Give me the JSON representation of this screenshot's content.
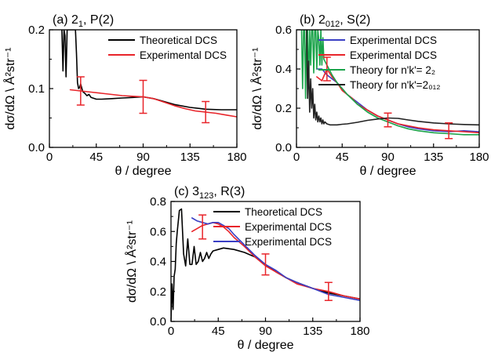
{
  "chart_data": [
    {
      "id": "a",
      "type": "line",
      "title": {
        "base": "(a) 2",
        "sub": "1",
        "rest": ", P(2)"
      },
      "xlabel": "θ / degree",
      "ylabel": "dσ/dΩ \\ Å²str⁻¹",
      "xlim": [
        0,
        180
      ],
      "ylim": [
        0,
        0.2
      ],
      "xticks": [
        0,
        45,
        90,
        135,
        180
      ],
      "xtick_labels": [
        "0",
        "45",
        "90",
        "135",
        "180"
      ],
      "yticks": [
        0,
        0.1,
        0.2
      ],
      "ytick_labels": [
        "0.0",
        "0.1",
        "0.2"
      ],
      "legend_position": "top-right",
      "series": [
        {
          "name": "Theoretical DCS",
          "color": "#000000",
          "x": [
            12,
            13,
            14,
            15,
            16,
            17,
            18,
            19,
            20,
            21,
            22,
            23,
            24,
            25,
            26,
            27,
            28,
            29,
            30,
            32,
            34,
            36,
            38,
            40,
            45,
            50,
            60,
            70,
            80,
            90,
            100,
            110,
            120,
            135,
            150,
            165,
            180
          ],
          "y": [
            0.2,
            0.13,
            0.2,
            0.19,
            0.12,
            0.2,
            0.2,
            0.2,
            0.2,
            0.2,
            0.2,
            0.2,
            0.2,
            0.2,
            0.16,
            0.11,
            0.1,
            0.102,
            0.108,
            0.095,
            0.092,
            0.088,
            0.09,
            0.085,
            0.082,
            0.082,
            0.083,
            0.084,
            0.085,
            0.086,
            0.083,
            0.078,
            0.073,
            0.068,
            0.065,
            0.064,
            0.064
          ]
        },
        {
          "name": "Experimental DCS",
          "color": "#e8242a",
          "x": [
            20,
            30,
            40,
            50,
            60,
            70,
            80,
            90,
            100,
            110,
            120,
            130,
            140,
            150,
            160,
            170,
            180
          ],
          "y": [
            0.098,
            0.096,
            0.094,
            0.092,
            0.09,
            0.088,
            0.087,
            0.086,
            0.083,
            0.077,
            0.071,
            0.066,
            0.062,
            0.06,
            0.058,
            0.055,
            0.052
          ]
        }
      ],
      "error_bars": [
        {
          "x": 30,
          "y": 0.096,
          "err": 0.024
        },
        {
          "x": 90,
          "y": 0.086,
          "err": 0.028
        },
        {
          "x": 150,
          "y": 0.06,
          "err": 0.018
        }
      ]
    },
    {
      "id": "b",
      "type": "line",
      "title": {
        "base": "(b) 2",
        "sub": "012",
        "rest": ", S(2)"
      },
      "xlabel": "θ / degree",
      "ylabel": "dσ/dΩ \\ Å²str⁻¹",
      "xlim": [
        0,
        180
      ],
      "ylim": [
        0,
        0.6
      ],
      "xticks": [
        0,
        45,
        90,
        135,
        180
      ],
      "xtick_labels": [
        "0",
        "45",
        "90",
        "135",
        "180"
      ],
      "yticks": [
        0,
        0.2,
        0.4,
        0.6
      ],
      "ytick_labels": [
        "0.0",
        "0.2",
        "0.4",
        "0.6"
      ],
      "legend_position": "top-right",
      "series": [
        {
          "name": "Experimental DCS",
          "color": "#3a3fc4",
          "x": [
            20,
            25,
            30,
            35,
            40,
            45,
            50,
            55,
            60,
            70,
            80,
            90,
            100,
            110,
            120,
            135,
            150,
            165,
            180
          ],
          "y": [
            0.4,
            0.4,
            0.37,
            0.35,
            0.33,
            0.3,
            0.27,
            0.25,
            0.23,
            0.19,
            0.16,
            0.14,
            0.12,
            0.105,
            0.095,
            0.085,
            0.08,
            0.085,
            0.08
          ]
        },
        {
          "name": "Experimental DCS",
          "color": "#e8242a",
          "x": [
            20,
            25,
            30,
            35,
            40,
            45,
            50,
            55,
            60,
            70,
            80,
            90,
            100,
            110,
            120,
            135,
            150,
            165,
            180
          ],
          "y": [
            0.36,
            0.34,
            0.4,
            0.36,
            0.33,
            0.29,
            0.27,
            0.25,
            0.22,
            0.19,
            0.16,
            0.14,
            0.12,
            0.11,
            0.1,
            0.09,
            0.085,
            0.08,
            0.075
          ]
        },
        {
          "name": "Theory for n'k'= 2₂",
          "color": "#1aa34a",
          "x": [
            5,
            6,
            7,
            8,
            9,
            10,
            11,
            12,
            13,
            14,
            15,
            16,
            17,
            18,
            19,
            20,
            21,
            22,
            23,
            24,
            25,
            26,
            27,
            28,
            30,
            35,
            40,
            45,
            50,
            60,
            70,
            80,
            90,
            100,
            110,
            120,
            135,
            150,
            165,
            180
          ],
          "y": [
            0.6,
            0.3,
            0.6,
            0.6,
            0.25,
            0.6,
            0.6,
            0.3,
            0.6,
            0.42,
            0.6,
            0.6,
            0.38,
            0.6,
            0.6,
            0.4,
            0.6,
            0.55,
            0.42,
            0.6,
            0.42,
            0.56,
            0.45,
            0.44,
            0.42,
            0.37,
            0.33,
            0.3,
            0.27,
            0.22,
            0.18,
            0.15,
            0.13,
            0.11,
            0.095,
            0.085,
            0.075,
            0.07,
            0.065,
            0.065
          ]
        },
        {
          "name": "Theory for n'k'=2₀₁₂",
          "color": "#222222",
          "x": [
            10,
            11,
            12,
            13,
            14,
            15,
            16,
            17,
            18,
            19,
            20,
            21,
            22,
            23,
            24,
            25,
            26,
            27,
            28,
            30,
            33,
            36,
            40,
            45,
            50,
            60,
            70,
            80,
            90,
            100,
            110,
            120,
            135,
            150,
            165,
            180
          ],
          "y": [
            0.6,
            0.25,
            0.44,
            0.18,
            0.35,
            0.2,
            0.3,
            0.15,
            0.22,
            0.14,
            0.18,
            0.13,
            0.16,
            0.13,
            0.15,
            0.12,
            0.14,
            0.12,
            0.13,
            0.12,
            0.115,
            0.115,
            0.115,
            0.118,
            0.12,
            0.128,
            0.138,
            0.145,
            0.15,
            0.148,
            0.14,
            0.133,
            0.125,
            0.12,
            0.117,
            0.115
          ]
        }
      ],
      "error_bars": [
        {
          "x": 30,
          "y": 0.4,
          "err": 0.06
        },
        {
          "x": 90,
          "y": 0.14,
          "err": 0.035
        },
        {
          "x": 150,
          "y": 0.085,
          "err": 0.04
        }
      ]
    },
    {
      "id": "c",
      "type": "line",
      "title": {
        "base": "(c) 3",
        "sub": "123",
        "rest": ", R(3)"
      },
      "xlabel": "θ / degree",
      "ylabel": "dσ/dΩ \\ Å²str⁻¹",
      "xlim": [
        0,
        180
      ],
      "ylim": [
        0,
        0.8
      ],
      "xticks": [
        0,
        45,
        90,
        135,
        180
      ],
      "xtick_labels": [
        "0",
        "45",
        "90",
        "135",
        "180"
      ],
      "yticks": [
        0,
        0.2,
        0.4,
        0.6,
        0.8
      ],
      "ytick_labels": [
        "0.0",
        "0.2",
        "0.4",
        "0.6",
        "0.8"
      ],
      "legend_position": "top-right",
      "series": [
        {
          "name": "Theoretical DCS",
          "color": "#000000",
          "x": [
            0,
            1,
            2,
            3,
            4,
            5,
            6,
            8,
            10,
            12,
            14,
            16,
            18,
            20,
            22,
            24,
            26,
            28,
            30,
            32,
            34,
            36,
            38,
            40,
            45,
            50,
            60,
            70,
            80,
            90,
            100,
            110,
            120,
            135,
            150,
            165,
            180
          ],
          "y": [
            0.0,
            0.25,
            0.08,
            0.3,
            0.35,
            0.52,
            0.6,
            0.74,
            0.75,
            0.45,
            0.37,
            0.55,
            0.38,
            0.38,
            0.5,
            0.38,
            0.4,
            0.46,
            0.4,
            0.42,
            0.46,
            0.42,
            0.45,
            0.47,
            0.48,
            0.49,
            0.48,
            0.46,
            0.43,
            0.38,
            0.33,
            0.29,
            0.26,
            0.22,
            0.19,
            0.17,
            0.15
          ]
        },
        {
          "name": "Experimental DCS",
          "color": "#e8242a",
          "x": [
            20,
            25,
            30,
            35,
            40,
            45,
            50,
            55,
            60,
            70,
            80,
            90,
            100,
            110,
            120,
            135,
            150,
            165,
            180
          ],
          "y": [
            0.6,
            0.62,
            0.64,
            0.65,
            0.66,
            0.65,
            0.63,
            0.6,
            0.56,
            0.5,
            0.43,
            0.37,
            0.33,
            0.29,
            0.25,
            0.22,
            0.2,
            0.17,
            0.15
          ]
        },
        {
          "name": "Experimental DCS",
          "color": "#3a3fc4",
          "x": [
            20,
            25,
            30,
            35,
            40,
            45,
            50,
            55,
            60,
            70,
            80,
            90,
            100,
            110,
            120,
            135,
            150,
            165,
            180
          ],
          "y": [
            0.69,
            0.67,
            0.66,
            0.65,
            0.66,
            0.66,
            0.64,
            0.62,
            0.58,
            0.51,
            0.44,
            0.38,
            0.34,
            0.29,
            0.26,
            0.22,
            0.18,
            0.16,
            0.14
          ]
        }
      ],
      "error_bars": [
        {
          "x": 30,
          "y": 0.63,
          "err": 0.08
        },
        {
          "x": 90,
          "y": 0.38,
          "err": 0.07
        },
        {
          "x": 150,
          "y": 0.2,
          "err": 0.06
        }
      ]
    }
  ]
}
